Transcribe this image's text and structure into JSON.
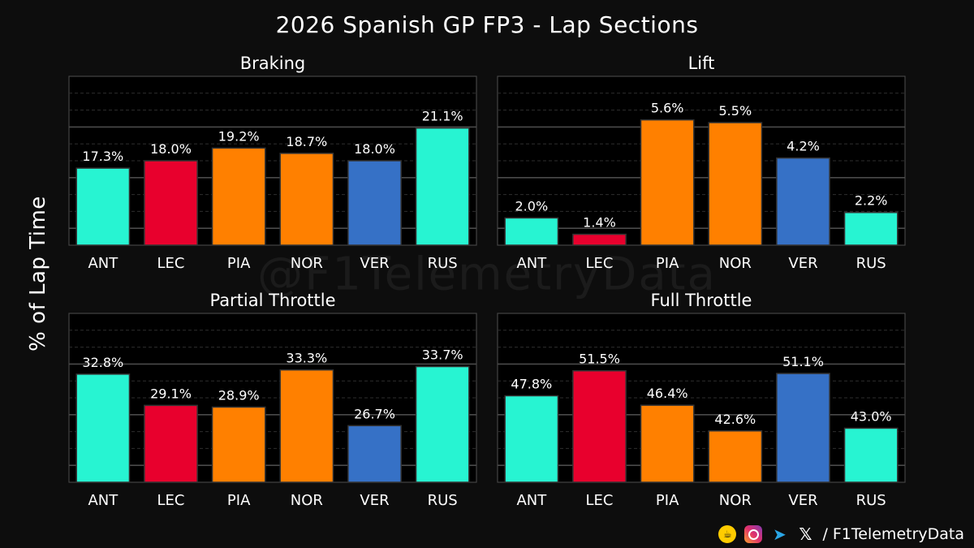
{
  "title": "2026 Spanish GP FP3 - Lap Sections",
  "ylabel": "% of Lap Time",
  "watermark": "@F1TelemetryData",
  "footer": {
    "handle": "/ F1TelemetryData",
    "icons": [
      "kofi-icon",
      "instagram-icon",
      "telegram-icon",
      "x-icon"
    ]
  },
  "colors": {
    "ANT": "#27f4d2",
    "LEC": "#e8002d",
    "PIA": "#ff8000",
    "NOR": "#ff8000",
    "VER": "#3671c6",
    "RUS": "#27f4d2"
  },
  "chart_data": [
    {
      "type": "bar",
      "title": "Braking",
      "categories": [
        "ANT",
        "LEC",
        "PIA",
        "NOR",
        "VER",
        "RUS"
      ],
      "values": [
        17.3,
        18.0,
        19.2,
        18.7,
        18.0,
        21.1
      ],
      "labels": [
        "17.3%",
        "18.0%",
        "19.2%",
        "18.7%",
        "18.0%",
        "21.1%"
      ],
      "ylim": [
        10,
        26
      ],
      "grid": true
    },
    {
      "type": "bar",
      "title": "Lift",
      "categories": [
        "ANT",
        "LEC",
        "PIA",
        "NOR",
        "VER",
        "RUS"
      ],
      "values": [
        2.0,
        1.4,
        5.6,
        5.5,
        4.2,
        2.2
      ],
      "labels": [
        "2.0%",
        "1.4%",
        "5.6%",
        "5.5%",
        "4.2%",
        "2.2%"
      ],
      "ylim": [
        1.0,
        7.2
      ],
      "grid": true
    },
    {
      "type": "bar",
      "title": "Partial Throttle",
      "categories": [
        "ANT",
        "LEC",
        "PIA",
        "NOR",
        "VER",
        "RUS"
      ],
      "values": [
        32.8,
        29.1,
        28.9,
        33.3,
        26.7,
        33.7
      ],
      "labels": [
        "32.8%",
        "29.1%",
        "28.9%",
        "33.3%",
        "26.7%",
        "33.7%"
      ],
      "ylim": [
        20,
        40
      ],
      "grid": true
    },
    {
      "type": "bar",
      "title": "Full Throttle",
      "categories": [
        "ANT",
        "LEC",
        "PIA",
        "NOR",
        "VER",
        "RUS"
      ],
      "values": [
        47.8,
        51.5,
        46.4,
        42.6,
        51.1,
        43.0
      ],
      "labels": [
        "47.8%",
        "51.5%",
        "46.4%",
        "42.6%",
        "51.1%",
        "43.0%"
      ],
      "ylim": [
        35,
        60
      ],
      "grid": true
    }
  ]
}
